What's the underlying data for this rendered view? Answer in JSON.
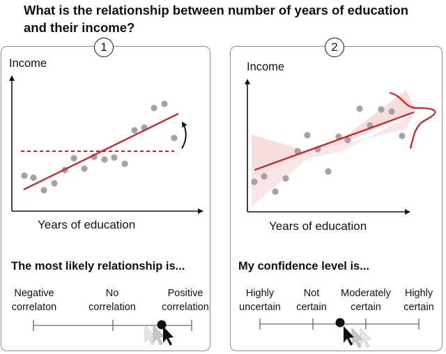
{
  "question": "What is the relationship between number of years of education and their income?",
  "panels": [
    {
      "number": "1",
      "ylabel": "Income",
      "xlabel": "Years of education",
      "prompt": "The most likely relationship is...",
      "scale": [
        {
          "line1": "Negative",
          "line2": "correlaton"
        },
        {
          "line1": "No",
          "line2": "correlation"
        },
        {
          "line1": "Positive",
          "line2": "correlation"
        }
      ],
      "selection": "between No correlation and Positive correlation"
    },
    {
      "number": "2",
      "ylabel": "Income",
      "xlabel": "Years of education",
      "prompt": "My confidence level is...",
      "scale": [
        {
          "line1": "Highly",
          "line2": "uncertain"
        },
        {
          "line1": "Not",
          "line2": "certain"
        },
        {
          "line1": "Moderately",
          "line2": "certain"
        },
        {
          "line1": "Highly",
          "line2": "certain"
        }
      ],
      "selection": "Not certain"
    }
  ],
  "colors": {
    "points": "#a3a3a3",
    "trend": "#d71920",
    "band": "#f7d7d7",
    "axis": "#111111",
    "panel_border": "#8a8a8a",
    "slider": "#808080"
  },
  "icons": [
    "cursor-icon",
    "curved-arrow-icon",
    "distribution-curve-icon"
  ]
}
